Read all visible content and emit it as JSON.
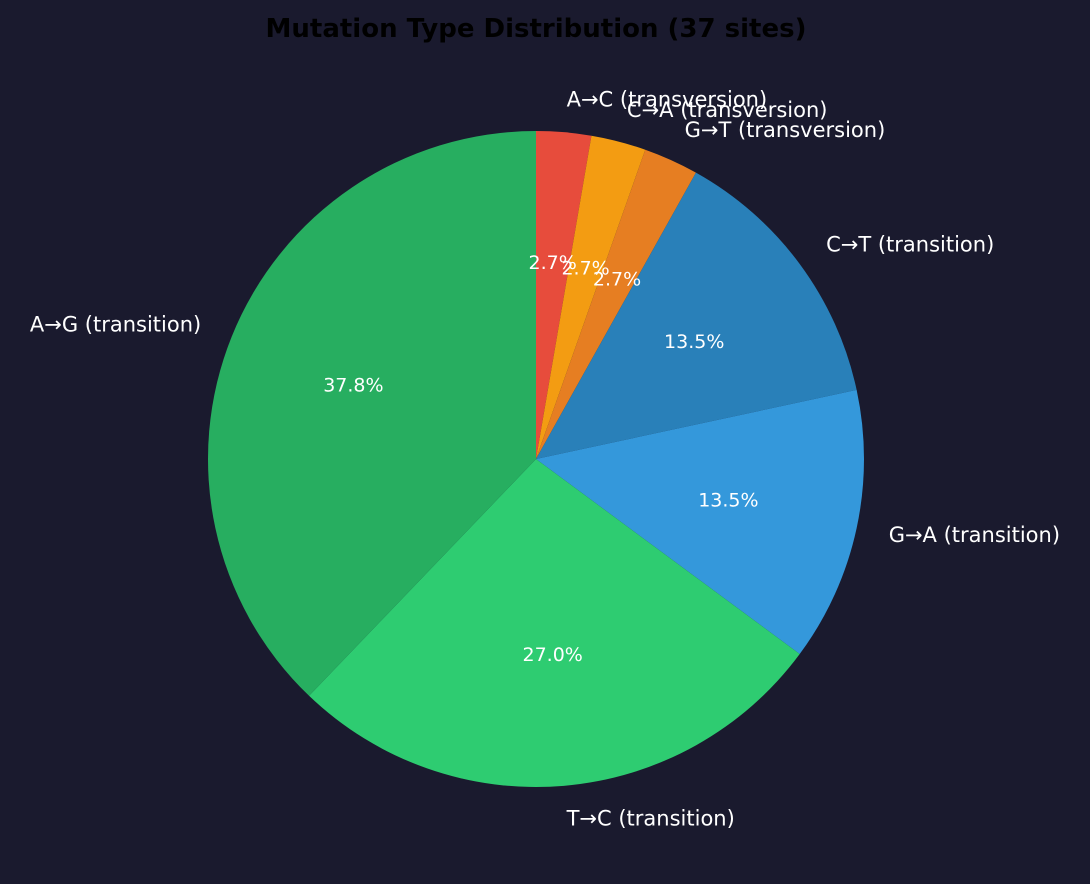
{
  "chart_data": {
    "type": "pie",
    "title": "Mutation Type Distribution (37 sites)",
    "start_angle_deg": 90,
    "direction": "clockwise",
    "background_color": "#1a1a2e",
    "slices": [
      {
        "label": "A→C (transversion)",
        "value": 1,
        "percent": "2.7%",
        "color": "#e74c3c"
      },
      {
        "label": "C→A (transversion)",
        "value": 1,
        "percent": "2.7%",
        "color": "#f39c12"
      },
      {
        "label": "G→T (transversion)",
        "value": 1,
        "percent": "2.7%",
        "color": "#e67e22"
      },
      {
        "label": "C→T (transition)",
        "value": 5,
        "percent": "13.5%",
        "color": "#2980b9"
      },
      {
        "label": "G→A (transition)",
        "value": 5,
        "percent": "13.5%",
        "color": "#3498db"
      },
      {
        "label": "T→C (transition)",
        "value": 10,
        "percent": "27.0%",
        "color": "#2ecc71"
      },
      {
        "label": "A→G (transition)",
        "value": 14,
        "percent": "37.8%",
        "color": "#27ae60"
      }
    ]
  }
}
